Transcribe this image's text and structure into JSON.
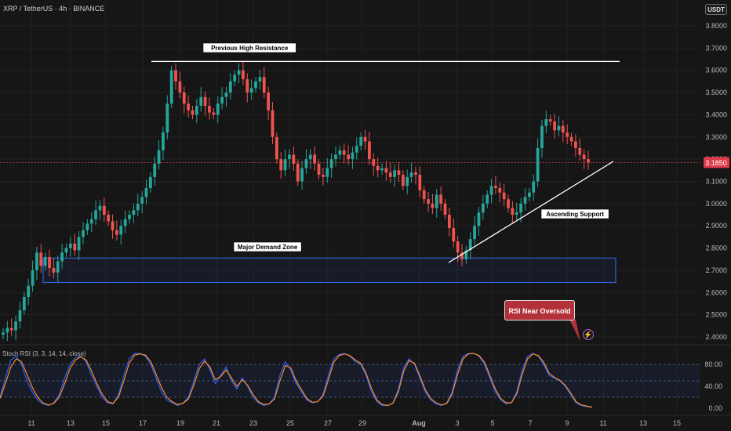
{
  "header": {
    "title": "XRP / TetherUS · 4h · BINANCE",
    "currency_button": "USDT"
  },
  "indicator": {
    "title": "Stoch RSI (3, 3, 14, 14, close)",
    "levels": [
      "80.00",
      "40.00",
      "0.00"
    ]
  },
  "annotations": {
    "resistance": "Previous High Resistance",
    "demand": "Major Demand Zone",
    "support": "Ascending Support",
    "rsi_callout": "RSI Near Oversold"
  },
  "price_label": "3.1850",
  "colors": {
    "up": "#26a69a",
    "down": "#ef5350",
    "demand_zone": "#2f5fd0",
    "callout": "#b3323a",
    "stoch_k": "#2962ff",
    "stoch_d": "#ff8a2a"
  },
  "chart_data": {
    "type": "candlestick",
    "symbol": "XRP / TetherUS",
    "interval": "4h",
    "exchange": "BINANCE",
    "y_ticks": [
      "3.8000",
      "3.7000",
      "3.6000",
      "3.5000",
      "3.4000",
      "3.3000",
      "3.2000",
      "3.1000",
      "3.0000",
      "2.9000",
      "2.8000",
      "2.7000",
      "2.6000",
      "2.5000",
      "2.4000"
    ],
    "ylim": [
      2.37,
      3.85
    ],
    "x_ticks": [
      "11",
      "13",
      "15",
      "17",
      "19",
      "21",
      "23",
      "25",
      "27",
      "29",
      "Aug",
      "3",
      "5",
      "7",
      "9",
      "11",
      "13",
      "15"
    ],
    "last_price": 3.185,
    "series": [
      {
        "name": "price",
        "close": [
          2.42,
          2.44,
          2.43,
          2.47,
          2.52,
          2.58,
          2.63,
          2.7,
          2.78,
          2.72,
          2.76,
          2.71,
          2.69,
          2.74,
          2.78,
          2.8,
          2.82,
          2.79,
          2.85,
          2.88,
          2.91,
          2.93,
          2.97,
          2.99,
          2.95,
          2.92,
          2.88,
          2.86,
          2.9,
          2.93,
          2.95,
          2.97,
          3.0,
          3.03,
          3.07,
          3.12,
          3.18,
          3.24,
          3.32,
          3.45,
          3.6,
          3.55,
          3.5,
          3.45,
          3.42,
          3.4,
          3.44,
          3.48,
          3.44,
          3.41,
          3.4,
          3.45,
          3.48,
          3.5,
          3.55,
          3.58,
          3.6,
          3.56,
          3.5,
          3.52,
          3.55,
          3.57,
          3.5,
          3.42,
          3.3,
          3.2,
          3.15,
          3.2,
          3.22,
          3.18,
          3.1,
          3.16,
          3.2,
          3.22,
          3.18,
          3.13,
          3.12,
          3.16,
          3.2,
          3.22,
          3.24,
          3.22,
          3.2,
          3.23,
          3.26,
          3.3,
          3.28,
          3.2,
          3.17,
          3.15,
          3.16,
          3.14,
          3.12,
          3.15,
          3.13,
          3.08,
          3.12,
          3.14,
          3.13,
          3.06,
          3.02,
          3.0,
          2.98,
          3.04,
          3.0,
          2.95,
          2.89,
          2.83,
          2.78,
          2.75,
          2.79,
          2.84,
          2.9,
          2.96,
          3.0,
          3.04,
          3.08,
          3.07,
          3.05,
          3.02,
          2.98,
          2.95,
          2.96,
          3.0,
          3.03,
          3.05,
          3.1,
          3.25,
          3.35,
          3.38,
          3.37,
          3.33,
          3.35,
          3.32,
          3.3,
          3.28,
          3.25,
          3.22,
          3.2,
          3.185
        ]
      },
      {
        "name": "Stoch RSI %K",
        "values": [
          20,
          55,
          88,
          95,
          80,
          50,
          30,
          15,
          8,
          5,
          10,
          25,
          55,
          80,
          92,
          95,
          85,
          60,
          40,
          20,
          10,
          8,
          25,
          60,
          90,
          100,
          100,
          95,
          80,
          55,
          30,
          15,
          10,
          5,
          10,
          20,
          50,
          80,
          90,
          70,
          45,
          60,
          75,
          50,
          35,
          55,
          40,
          20,
          10,
          5,
          8,
          20,
          60,
          85,
          70,
          45,
          30,
          15,
          10,
          12,
          25,
          60,
          90,
          98,
          100,
          95,
          85,
          80,
          60,
          30,
          12,
          5,
          5,
          10,
          35,
          75,
          90,
          80,
          55,
          30,
          15,
          8,
          5,
          10,
          30,
          70,
          95,
          100,
          100,
          95,
          80,
          55,
          30,
          15,
          8,
          10,
          30,
          70,
          95,
          100,
          95,
          80,
          60,
          55,
          50,
          40,
          25,
          10,
          5,
          3,
          2
        ]
      },
      {
        "name": "Stoch RSI %D",
        "values": [
          18,
          45,
          75,
          90,
          85,
          62,
          38,
          20,
          10,
          6,
          9,
          20,
          45,
          72,
          88,
          94,
          88,
          68,
          45,
          25,
          12,
          9,
          20,
          50,
          82,
          97,
          99,
          97,
          85,
          62,
          38,
          20,
          12,
          7,
          9,
          17,
          42,
          72,
          86,
          75,
          52,
          58,
          70,
          55,
          40,
          52,
          42,
          25,
          12,
          7,
          8,
          17,
          50,
          78,
          74,
          50,
          34,
          18,
          11,
          12,
          22,
          52,
          84,
          96,
          99,
          96,
          88,
          82,
          64,
          36,
          15,
          7,
          5,
          9,
          30,
          68,
          87,
          82,
          59,
          34,
          18,
          10,
          6,
          9,
          26,
          62,
          90,
          99,
          100,
          96,
          84,
          60,
          35,
          18,
          10,
          10,
          26,
          62,
          90,
          99,
          96,
          84,
          64,
          56,
          51,
          42,
          28,
          12,
          6,
          4,
          2
        ]
      }
    ]
  }
}
